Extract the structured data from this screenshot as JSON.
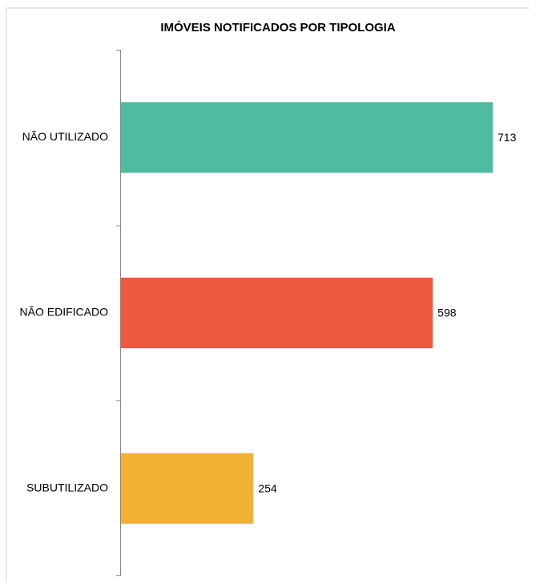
{
  "chart_data": {
    "type": "bar",
    "orientation": "horizontal",
    "title": "IMÓVEIS NOTIFICADOS POR TIPOLOGIA",
    "categories": [
      "NÃO UTILIZADO",
      "NÃO EDIFICADO",
      "SUBUTILIZADO"
    ],
    "values": [
      713,
      598,
      254
    ],
    "colors": [
      "#4fbba0",
      "#ee583c",
      "#f2b035"
    ]
  }
}
